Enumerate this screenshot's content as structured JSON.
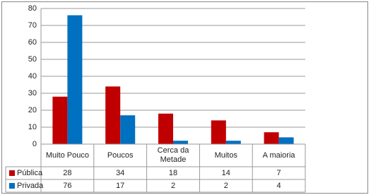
{
  "chart_data": {
    "type": "bar",
    "categories": [
      "Muito Pouco",
      "Poucos",
      "Cerca da Metade",
      "Muitos",
      "A maioria"
    ],
    "series": [
      {
        "name": "Pública",
        "color": "#c00000",
        "values": [
          28,
          34,
          18,
          14,
          7
        ]
      },
      {
        "name": "Privada",
        "color": "#0070c0",
        "values": [
          76,
          17,
          2,
          2,
          4
        ]
      }
    ],
    "ylim": [
      0,
      80
    ],
    "yticks": [
      0,
      10,
      20,
      30,
      40,
      50,
      60,
      70,
      80
    ],
    "grid": true,
    "data_table": true
  }
}
